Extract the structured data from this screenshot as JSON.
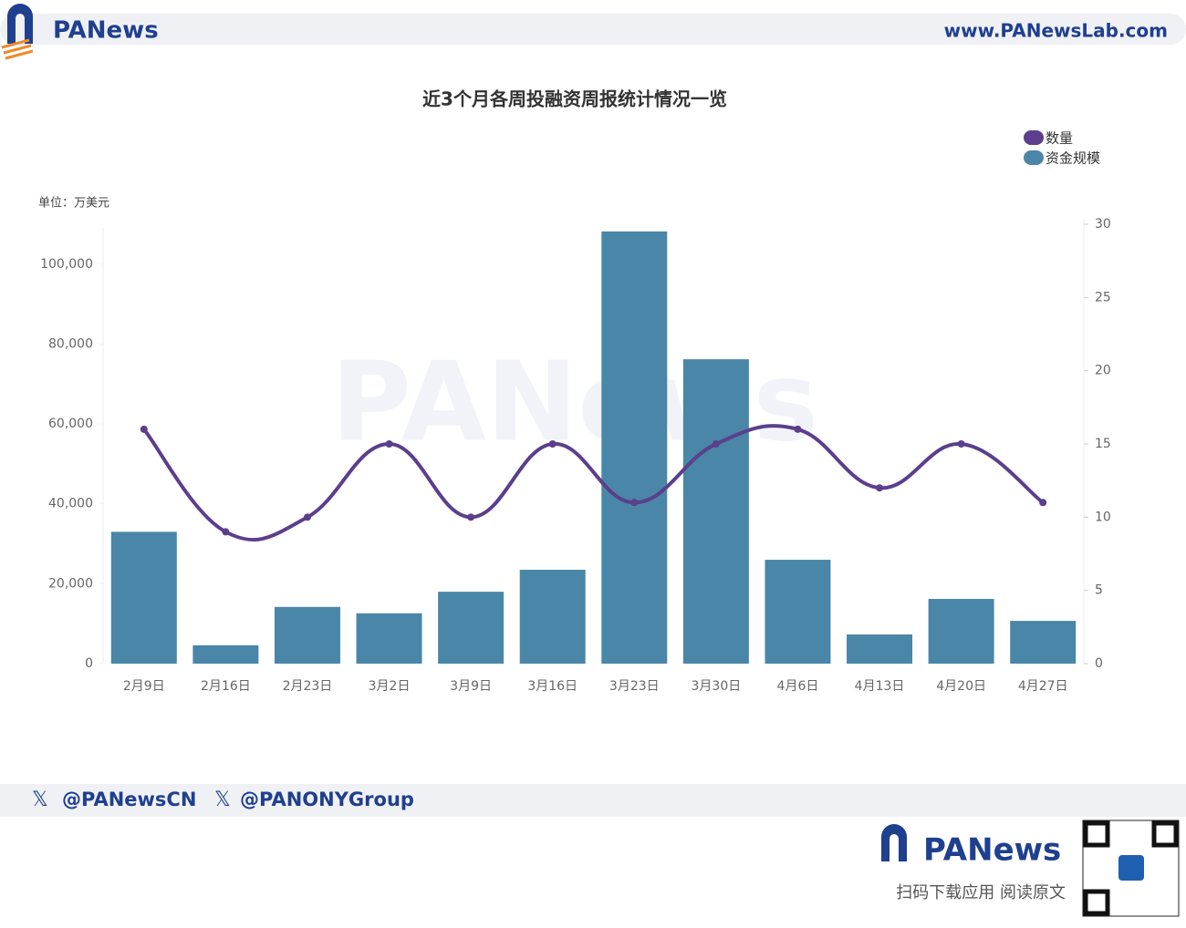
{
  "header": {
    "logo": "PANews",
    "url": "www.PANewsLab.com"
  },
  "chart_data": {
    "type": "combo",
    "title": "近3个月各周投融资周报统计情况一览",
    "unit_label": "单位：万美元",
    "categories": [
      "2月9日",
      "2月16日",
      "2月23日",
      "3月2日",
      "3月9日",
      "3月16日",
      "3月23日",
      "3月30日",
      "4月6日",
      "4月13日",
      "4月20日",
      "4月27日"
    ],
    "series": [
      {
        "name": "数量",
        "type": "line",
        "axis": "y2",
        "color": "#5b3f8c",
        "values": [
          16,
          9,
          10,
          15,
          10,
          15,
          11,
          15,
          16,
          12,
          15,
          11
        ]
      },
      {
        "name": "资金规模",
        "type": "bar",
        "color": "#4a86a8",
        "values": [
          33000,
          4600,
          14200,
          12600,
          18000,
          23500,
          108200,
          76200,
          26000,
          7300,
          16200,
          10700
        ]
      }
    ],
    "ylim": [
      0,
      110000
    ],
    "yticks": [
      0,
      {
        "value": 20000,
        "label": "20,000"
      },
      {
        "value": 40000,
        "label": "40,000"
      },
      {
        "value": 60000,
        "label": "60,000"
      },
      {
        "value": 80000,
        "label": "80,000"
      },
      {
        "value": 100000,
        "label": "100,000"
      }
    ],
    "y2lim": [
      0,
      30
    ],
    "y2ticks": [
      0,
      5,
      10,
      15,
      20,
      25,
      30
    ],
    "legend": "top-right",
    "grid": false
  },
  "footer": {
    "handles": [
      "@PANewsCN",
      "@PANONYGroup"
    ],
    "logo": "PANews",
    "cta": "扫码下载应用 阅读原文"
  }
}
